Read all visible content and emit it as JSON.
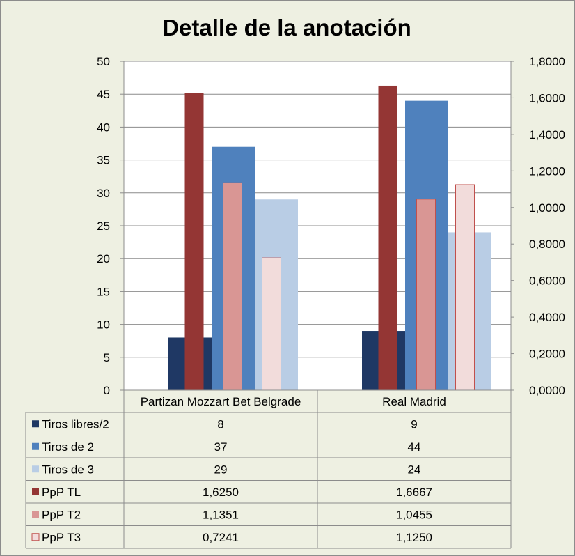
{
  "chart_data": {
    "type": "bar",
    "title": "Detalle de la anotación",
    "categories": [
      "Partizan Mozzart Bet Belgrade",
      "Real Madrid"
    ],
    "primary_axis": {
      "ylim": [
        0,
        50
      ],
      "ticks": [
        "0",
        "5",
        "10",
        "15",
        "20",
        "25",
        "30",
        "35",
        "40",
        "45",
        "50"
      ]
    },
    "secondary_axis": {
      "ylim": [
        0,
        1.8
      ],
      "ticks": [
        "0,0000",
        "0,2000",
        "0,4000",
        "0,6000",
        "0,8000",
        "1,0000",
        "1,2000",
        "1,4000",
        "1,6000",
        "1,8000"
      ]
    },
    "grid": true,
    "legend": "data-table",
    "series": [
      {
        "name": "Tiros libres/2",
        "axis": "primary",
        "values": [
          8,
          9
        ],
        "labels": [
          "8",
          "9"
        ],
        "color": "#1f3864"
      },
      {
        "name": "Tiros de 2",
        "axis": "primary",
        "values": [
          37,
          44
        ],
        "labels": [
          "37",
          "44"
        ],
        "color": "#4f81bd"
      },
      {
        "name": "Tiros de 3",
        "axis": "primary",
        "values": [
          29,
          24
        ],
        "labels": [
          "29",
          "24"
        ],
        "color": "#b9cde5"
      },
      {
        "name": "PpP TL",
        "axis": "secondary",
        "values": [
          1.625,
          1.6667
        ],
        "labels": [
          "1,6250",
          "1,6667"
        ],
        "color": "#943634"
      },
      {
        "name": "PpP T2",
        "axis": "secondary",
        "values": [
          1.1351,
          1.0455
        ],
        "labels": [
          "1,1351",
          "1,0455"
        ],
        "color": "#d99694"
      },
      {
        "name": "PpP T3",
        "axis": "secondary",
        "values": [
          0.7241,
          1.125
        ],
        "labels": [
          "0,7241",
          "1,1250"
        ],
        "color": "#f2dcdb"
      }
    ]
  }
}
